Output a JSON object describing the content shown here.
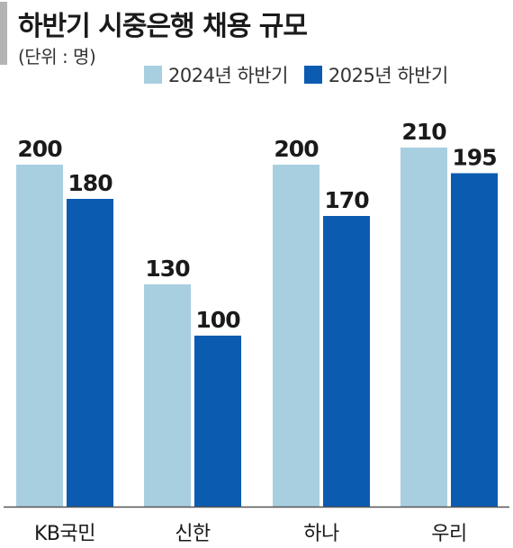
{
  "chart_data": {
    "type": "bar",
    "title": "하반기 시중은행 채용 규모",
    "unit_label": "(단위 : 명)",
    "categories": [
      "KB국민",
      "신한",
      "하나",
      "우리"
    ],
    "series": [
      {
        "name": "2024년 하반기",
        "values": [
          200,
          130,
          200,
          210
        ]
      },
      {
        "name": "2025년 하반기",
        "values": [
          180,
          100,
          170,
          195
        ]
      }
    ],
    "ylim": [
      0,
      240
    ],
    "grid": false,
    "legend_position": "top",
    "data_labels": true
  },
  "colors": {
    "series_2024": "#a8cfe0",
    "series_2025": "#0b5bb1",
    "axis": "#555555",
    "text": "#1a1a1a",
    "accent_bar": "#b4b4b4"
  }
}
